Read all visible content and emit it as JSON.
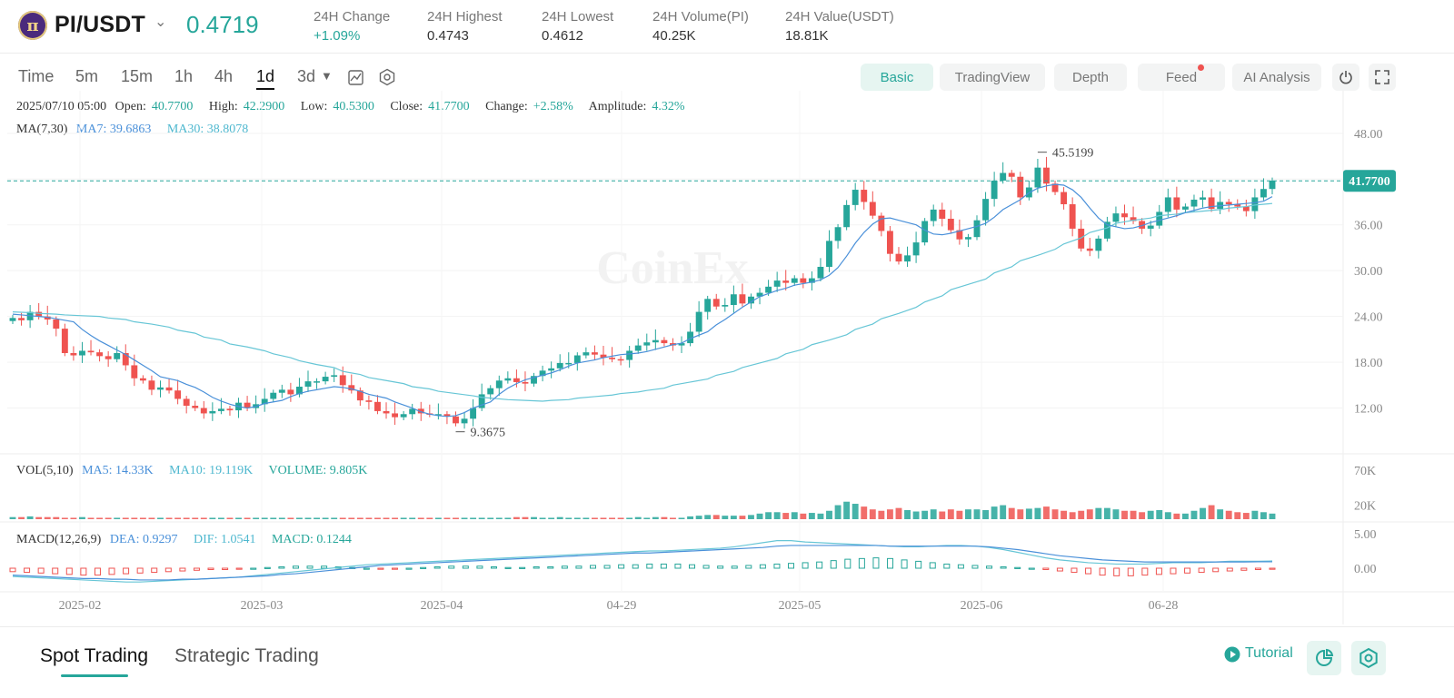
{
  "header": {
    "logo_letter": "π",
    "pair": "PI/USDT",
    "last_price": "0.4719",
    "stats": [
      {
        "label": "24H Change",
        "value": "+1.09%",
        "color": "#26a69a"
      },
      {
        "label": "24H Highest",
        "value": "0.4743",
        "color": "#333333"
      },
      {
        "label": "24H Lowest",
        "value": "0.4612",
        "color": "#333333"
      },
      {
        "label": "24H Volume(PI)",
        "value": "40.25K",
        "color": "#333333"
      },
      {
        "label": "24H Value(USDT)",
        "value": "18.81K",
        "color": "#333333"
      }
    ]
  },
  "toolbar": {
    "timeframes": [
      "Time",
      "5m",
      "15m",
      "1h",
      "4h",
      "1d",
      "3d"
    ],
    "active_timeframe": "1d",
    "tabs": [
      "Basic",
      "TradingView",
      "Depth",
      "Feed",
      "AI Analysis"
    ],
    "active_tab": "Basic"
  },
  "ohlc": {
    "date": "2025/07/10 05:00",
    "open_label": "Open:",
    "open": "40.7700",
    "high_label": "High:",
    "high": "42.2900",
    "low_label": "Low:",
    "low": "40.5300",
    "close_label": "Close:",
    "close": "41.7700",
    "change_label": "Change:",
    "change": "+2.58%",
    "amplitude_label": "Amplitude:",
    "amplitude": "4.32%"
  },
  "ma": {
    "label": "MA(7,30)",
    "ma7": "MA7: 39.6863",
    "ma30": "MA30: 38.8078"
  },
  "vol": {
    "label": "VOL(5,10)",
    "ma5": "MA5: 14.33K",
    "ma10": "MA10: 19.119K",
    "volume": "VOLUME: 9.805K"
  },
  "macd": {
    "label": "MACD(12,26,9)",
    "dea": "DEA: 0.9297",
    "dif": "DIF: 1.0541",
    "macd": "MACD: 0.1244"
  },
  "watermark": "CoinEx",
  "colors": {
    "up": "#26a69a",
    "down": "#ef5350",
    "ma7": "#4a90d9",
    "ma30": "#67c6d6",
    "current": "#26a69a"
  },
  "chart_data": {
    "type": "candlestick",
    "price_axis": {
      "ticks": [
        "48.00",
        "42.00",
        "36.00",
        "30.00",
        "24.00",
        "18.00",
        "12.00"
      ],
      "ylim": [
        6,
        50
      ]
    },
    "volume_axis": {
      "ticks": [
        "70K",
        "20K"
      ]
    },
    "macd_axis": {
      "ticks": [
        "5.00",
        "0.00"
      ]
    },
    "x_tick_labels": [
      "2025-02",
      "2025-03",
      "2025-04",
      "04-29",
      "2025-05",
      "2025-06",
      "06-28"
    ],
    "current_price_label": "41.7700",
    "max_label": "45.5199",
    "min_label": "9.3675",
    "closes": [
      23.8,
      23.5,
      24.6,
      24.0,
      23.6,
      22.4,
      19.2,
      18.9,
      19.5,
      19.3,
      18.8,
      18.4,
      19.2,
      17.6,
      15.9,
      15.6,
      14.4,
      14.7,
      14.3,
      13.2,
      12.3,
      12.0,
      11.3,
      11.6,
      11.9,
      11.7,
      12.7,
      12.0,
      12.5,
      13.2,
      14.0,
      14.4,
      13.8,
      14.8,
      15.5,
      15.5,
      16.1,
      16.3,
      15.0,
      14.3,
      13.0,
      12.8,
      11.6,
      11.3,
      10.8,
      11.2,
      11.9,
      11.3,
      11.2,
      11.2,
      10.9,
      10.0,
      10.6,
      12.0,
      13.8,
      14.6,
      15.6,
      15.9,
      15.4,
      15.2,
      16.2,
      16.9,
      17.2,
      17.9,
      17.9,
      18.9,
      19.3,
      19.0,
      18.6,
      18.4,
      18.3,
      19.5,
      20.2,
      20.6,
      20.9,
      20.5,
      20.2,
      20.5,
      22.0,
      24.6,
      26.3,
      25.3,
      25.5,
      26.9,
      25.7,
      26.6,
      27.1,
      27.9,
      28.7,
      28.4,
      29.0,
      28.4,
      29.0,
      30.5,
      33.9,
      35.7,
      38.6,
      40.6,
      39.0,
      37.2,
      35.2,
      32.2,
      31.2,
      32.0,
      33.7,
      36.5,
      38.0,
      36.8,
      35.3,
      34.1,
      34.4,
      36.6,
      39.4,
      41.8,
      42.8,
      42.3,
      39.6,
      40.9,
      43.5,
      41.4,
      40.3,
      38.7,
      35.5,
      32.9,
      32.6,
      34.2,
      36.4,
      37.5,
      37.0,
      36.5,
      35.5,
      35.9,
      37.7,
      39.6,
      38.0,
      38.4,
      39.3,
      39.6,
      38.1,
      39.0,
      38.7,
      38.4,
      37.8,
      39.6,
      40.7,
      41.8
    ],
    "ma7": [
      24.3,
      24.2,
      24.1,
      24.0,
      23.9,
      23.7,
      23.3,
      22.3,
      21.5,
      20.8,
      20.2,
      19.6,
      19.0,
      18.3,
      17.6,
      16.9,
      16.1,
      15.6,
      15.1,
      14.7,
      14.1,
      13.4,
      12.9,
      12.5,
      12.2,
      12.0,
      12.2,
      12.6,
      13.0,
      13.5,
      13.9,
      14.2,
      14.4,
      14.6,
      14.8,
      14.7,
      14.5,
      14.2,
      13.8,
      13.3,
      12.8,
      12.4,
      12.0,
      11.5,
      11.2,
      11.0,
      10.9,
      11.0,
      11.4,
      12.0,
      12.8,
      13.8,
      14.6,
      15.2,
      15.7,
      16.0,
      16.3,
      16.6,
      17.0,
      17.5,
      17.9,
      18.3,
      18.6,
      18.8,
      19.0,
      19.1,
      19.2,
      19.4,
      19.7,
      20.0,
      20.3,
      20.5,
      21.1,
      22.0,
      22.9,
      23.6,
      24.4,
      25.2,
      25.9,
      26.6,
      27.0,
      27.4,
      27.7,
      28.1,
      28.5,
      28.8,
      29.4,
      30.4,
      31.9,
      33.6,
      35.0,
      36.1,
      36.8,
      36.9,
      36.6,
      36.0,
      35.3,
      34.8,
      34.7,
      34.9,
      35.2,
      35.5,
      35.8,
      36.2,
      37.0,
      38.0,
      39.3,
      40.2,
      40.8,
      41.1,
      41.3,
      41.2,
      40.6,
      39.6,
      38.2,
      36.9,
      36.0,
      35.5,
      35.6,
      35.9,
      36.3,
      36.6,
      36.9,
      37.2,
      37.6,
      37.9,
      38.2,
      38.4,
      38.6,
      38.7,
      38.8,
      38.9,
      39.1,
      39.7
    ],
    "ma30": [
      24.6,
      24.5,
      24.4,
      24.3,
      24.2,
      24.1,
      24.0,
      23.8,
      23.6,
      23.3,
      23.0,
      22.6,
      22.2,
      21.8,
      21.3,
      20.9,
      20.4,
      20.0,
      19.5,
      19.1,
      18.6,
      18.2,
      17.7,
      17.3,
      16.8,
      16.4,
      16.0,
      15.6,
      15.2,
      14.8,
      14.5,
      14.2,
      13.9,
      13.6,
      13.4,
      13.2,
      13.1,
      13.0,
      12.9,
      13.0,
      13.1,
      13.3,
      13.5,
      13.7,
      13.9,
      14.1,
      14.3,
      14.6,
      15.0,
      15.4,
      15.8,
      16.3,
      16.8,
      17.3,
      17.9,
      18.5,
      19.1,
      19.7,
      20.3,
      20.9,
      21.6,
      22.3,
      23.0,
      23.7,
      24.4,
      25.2,
      25.9,
      26.7,
      27.5,
      28.2,
      28.9,
      29.7,
      30.5,
      31.3,
      32.0,
      32.8,
      33.5,
      34.3,
      35.0,
      35.6,
      36.2,
      36.6,
      36.9,
      37.2,
      37.4,
      37.6,
      37.8,
      38.0,
      38.2,
      38.4,
      38.6,
      38.8
    ],
    "volumes": [
      3,
      3,
      4,
      3,
      3,
      3,
      2,
      2,
      3,
      2,
      2,
      2,
      2,
      2,
      2,
      2,
      2,
      2,
      2,
      2,
      2,
      2,
      2,
      2,
      2,
      2,
      2,
      2,
      2,
      2,
      2,
      2,
      2,
      2,
      2,
      2,
      2,
      2,
      2,
      2,
      2,
      2,
      2,
      2,
      2,
      2,
      2,
      2,
      2,
      2,
      2,
      2,
      2,
      2,
      2,
      2,
      2,
      2,
      3,
      3,
      3,
      2,
      2,
      3,
      2,
      2,
      2,
      2,
      2,
      2,
      2,
      2,
      3,
      2,
      3,
      3,
      2,
      2,
      4,
      5,
      6,
      6,
      5,
      5,
      5,
      6,
      8,
      10,
      10,
      9,
      10,
      8,
      9,
      8,
      12,
      20,
      25,
      22,
      18,
      14,
      12,
      14,
      16,
      13,
      11,
      12,
      14,
      11,
      14,
      12,
      14,
      14,
      13,
      18,
      20,
      16,
      14,
      15,
      16,
      18,
      14,
      12,
      10,
      12,
      14,
      16,
      16,
      14,
      12,
      12,
      10,
      12,
      13,
      10,
      8,
      8,
      12,
      16,
      20,
      14,
      12,
      10,
      9,
      12,
      10,
      8
    ],
    "volume_max": 70,
    "macd_hist": [
      -0.5,
      -0.6,
      -0.7,
      -0.8,
      -0.9,
      -1.0,
      -1.0,
      -0.9,
      -0.8,
      -0.7,
      -0.6,
      -0.5,
      -0.4,
      -0.3,
      -0.2,
      -0.2,
      -0.1,
      0.0,
      0.1,
      0.2,
      0.3,
      0.3,
      0.3,
      0.2,
      0.1,
      0.0,
      -0.1,
      -0.1,
      0.0,
      0.1,
      0.2,
      0.3,
      0.3,
      0.3,
      0.2,
      0.1,
      0.1,
      0.2,
      0.2,
      0.3,
      0.3,
      0.4,
      0.4,
      0.5,
      0.5,
      0.6,
      0.6,
      0.6,
      0.5,
      0.4,
      0.3,
      0.3,
      0.4,
      0.5,
      0.6,
      0.7,
      0.8,
      0.9,
      1.1,
      1.3,
      1.4,
      1.5,
      1.4,
      1.2,
      1.0,
      0.8,
      0.6,
      0.5,
      0.4,
      0.3,
      0.2,
      0.1,
      0.0,
      -0.2,
      -0.4,
      -0.6,
      -0.8,
      -1.0,
      -1.1,
      -1.1,
      -1.0,
      -0.9,
      -0.8,
      -0.7,
      -0.6,
      -0.5,
      -0.4,
      -0.3,
      -0.2,
      -0.1
    ],
    "dif": [
      -1.2,
      -1.3,
      -1.4,
      -1.5,
      -1.6,
      -1.7,
      -1.8,
      -1.9,
      -2.0,
      -2.0,
      -1.9,
      -1.8,
      -1.7,
      -1.6,
      -1.5,
      -1.4,
      -1.3,
      -1.1,
      -0.9,
      -0.7,
      -0.5,
      -0.3,
      -0.1,
      0.1,
      0.3,
      0.5,
      0.6,
      0.7,
      0.8,
      0.9,
      1.0,
      1.1,
      1.2,
      1.3,
      1.4,
      1.5,
      1.6,
      1.7,
      1.8,
      1.9,
      2.0,
      2.1,
      2.2,
      2.3,
      2.4,
      2.5,
      2.5,
      2.6,
      2.7,
      2.8,
      2.9,
      3.1,
      3.4,
      3.7,
      4.0,
      4.0,
      3.8,
      3.7,
      3.6,
      3.5,
      3.4,
      3.3,
      3.2,
      3.1,
      3.1,
      3.2,
      3.3,
      3.3,
      3.2,
      3.0,
      2.7,
      2.3,
      1.9,
      1.5,
      1.2,
      1.0,
      0.8,
      0.7,
      0.6,
      0.6,
      0.6,
      0.7,
      0.8,
      0.8,
      0.8,
      0.9,
      1.0,
      1.0,
      1.0,
      1.05
    ],
    "dea": [
      -1.0,
      -1.1,
      -1.2,
      -1.3,
      -1.4,
      -1.5,
      -1.5,
      -1.6,
      -1.6,
      -1.7,
      -1.7,
      -1.7,
      -1.6,
      -1.6,
      -1.5,
      -1.4,
      -1.3,
      -1.2,
      -1.1,
      -0.9,
      -0.8,
      -0.6,
      -0.4,
      -0.2,
      0.0,
      0.2,
      0.4,
      0.5,
      0.6,
      0.7,
      0.8,
      0.9,
      1.0,
      1.1,
      1.2,
      1.3,
      1.4,
      1.5,
      1.6,
      1.7,
      1.8,
      1.9,
      2.0,
      2.1,
      2.2,
      2.2,
      2.3,
      2.4,
      2.5,
      2.6,
      2.7,
      2.8,
      2.9,
      3.0,
      3.2,
      3.3,
      3.3,
      3.3,
      3.3,
      3.3,
      3.3,
      3.3,
      3.2,
      3.2,
      3.2,
      3.2,
      3.2,
      3.2,
      3.2,
      3.1,
      2.9,
      2.7,
      2.4,
      2.1,
      1.8,
      1.6,
      1.4,
      1.2,
      1.1,
      1.0,
      0.9,
      0.9,
      0.9,
      0.9,
      0.9,
      0.9,
      0.9,
      0.9,
      0.93,
      0.93
    ]
  },
  "bottom": {
    "tabs": [
      "Spot Trading",
      "Strategic Trading"
    ],
    "active": "Spot Trading",
    "tutorial": "Tutorial"
  }
}
